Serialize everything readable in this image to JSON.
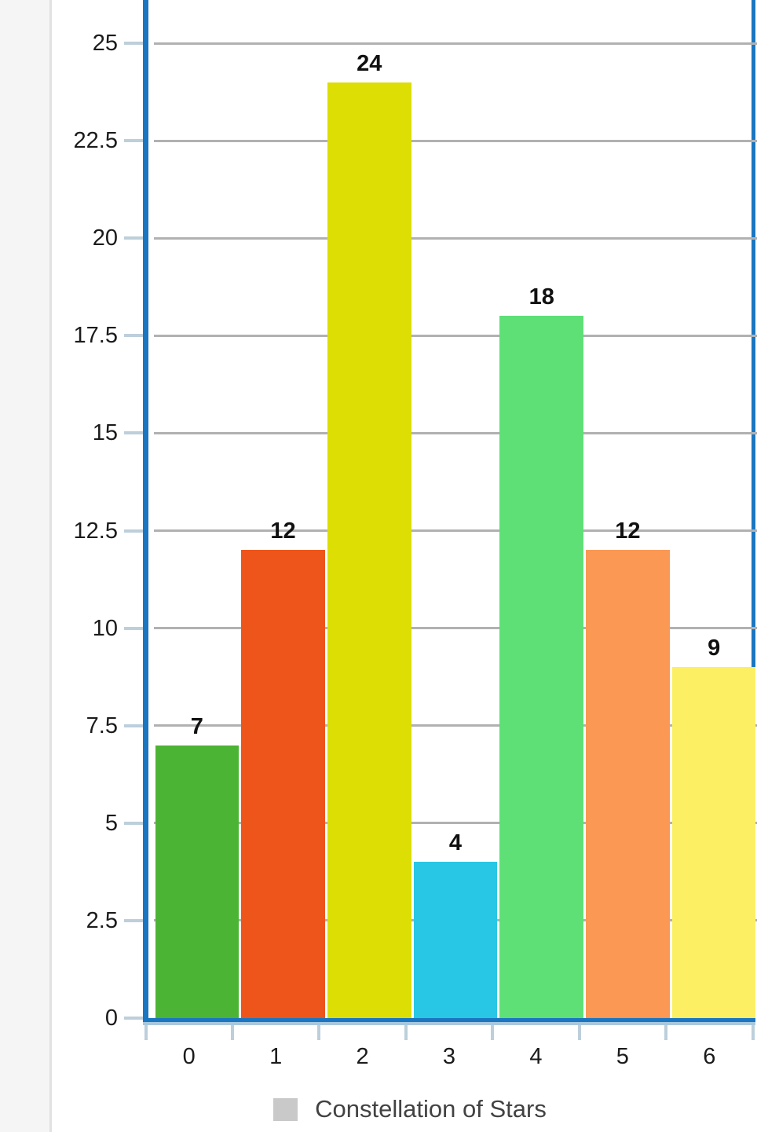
{
  "chart_data": {
    "type": "bar",
    "title": "",
    "xlabel": "",
    "ylabel": "",
    "categories": [
      "0",
      "1",
      "2",
      "3",
      "4",
      "5",
      "6"
    ],
    "values": [
      7,
      12,
      24,
      4,
      18,
      12,
      9
    ],
    "value_labels": [
      "7",
      "12",
      "24",
      "4",
      "18",
      "12",
      "9"
    ],
    "bar_colors": [
      "#4CB434",
      "#EE551B",
      "#DCDE04",
      "#29C7E6",
      "#5EE077",
      "#FB9854",
      "#FCEF63"
    ],
    "y_ticks": [
      0,
      2.5,
      5,
      7.5,
      10,
      12.5,
      15,
      17.5,
      20,
      22.5,
      25
    ],
    "y_tick_labels": [
      "0",
      "2.5",
      "5",
      "7.5",
      "10",
      "12.5",
      "15",
      "17.5",
      "20",
      "22.5",
      "25"
    ],
    "ylim_visible": [
      0,
      26.1
    ],
    "grid": true,
    "legend": {
      "label": "Constellation of Stars",
      "position": "bottom",
      "swatch_color": "#C9C9C9"
    },
    "colors": {
      "axis_border": "#1B76C1",
      "axis_underline": "#A9C8DE",
      "gridline": "#B1B1B1",
      "tick": "#BCCFDB",
      "tick_label": "#1B1B1B",
      "value_label": "#111111",
      "legend_text": "#424242",
      "sidebar_bg": "#F5F5F5",
      "sidebar_border": "#E1E1E1"
    }
  }
}
